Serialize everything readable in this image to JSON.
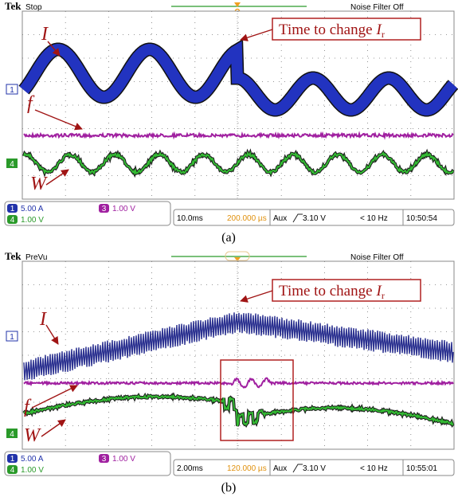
{
  "panels": [
    {
      "brand": "Tek",
      "status": "Stop",
      "noise_filter": "Noise Filter Off",
      "annotation": {
        "text": "Time to change",
        "variable": "I",
        "subscript": "r"
      },
      "labels": [
        "I",
        "f",
        "W"
      ],
      "channels": [
        {
          "number": "1",
          "scale": "5.00 A"
        },
        {
          "number": "3",
          "scale": "1.00 V"
        },
        {
          "number": "4",
          "scale": "1.00 V"
        }
      ],
      "timebase": "10.0ms",
      "position": "200.000 µs",
      "trigger_source": "Aux",
      "trigger_level": "3.10 V",
      "frequency": "< 10 Hz",
      "clock": "10:50:54",
      "caption": "(a)"
    },
    {
      "brand": "Tek",
      "status": "PreVu",
      "noise_filter": "Noise Filter Off",
      "annotation": {
        "text": "Time to change",
        "variable": "I",
        "subscript": "r"
      },
      "labels": [
        "I",
        "f",
        "W"
      ],
      "channels": [
        {
          "number": "1",
          "scale": "5.00 A"
        },
        {
          "number": "3",
          "scale": "1.00 V"
        },
        {
          "number": "4",
          "scale": "1.00 V"
        }
      ],
      "timebase": "2.00ms",
      "position": "120.000 µs",
      "trigger_source": "Aux",
      "trigger_level": "3.10 V",
      "frequency": "< 10 Hz",
      "clock": "10:55:01",
      "caption": "(b)"
    }
  ]
}
